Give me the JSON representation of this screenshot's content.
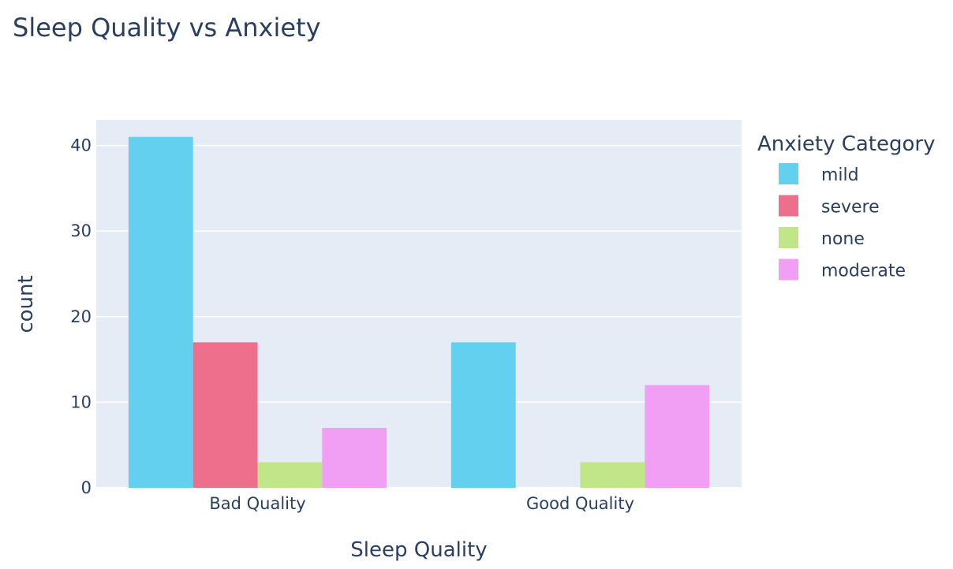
{
  "chart_data": {
    "type": "bar",
    "title": "Sleep Quality vs Anxiety",
    "xlabel": "Sleep Quality",
    "ylabel": "count",
    "categories": [
      "Bad Quality",
      "Good Quality"
    ],
    "series": [
      {
        "name": "mild",
        "color": "#63D0F0",
        "values": [
          41,
          17
        ]
      },
      {
        "name": "severe",
        "color": "#EE6F8C",
        "values": [
          17,
          0
        ]
      },
      {
        "name": "none",
        "color": "#C0E689",
        "values": [
          3,
          3
        ]
      },
      {
        "name": "moderate",
        "color": "#F09FF5",
        "values": [
          7,
          12
        ]
      }
    ],
    "ylim": [
      0,
      43
    ],
    "yticks": [
      0,
      10,
      20,
      30,
      40
    ],
    "grid": true,
    "legend": {
      "title": "Anxiety Category",
      "placement": "right"
    },
    "plot_background": "#E5ECF6"
  }
}
